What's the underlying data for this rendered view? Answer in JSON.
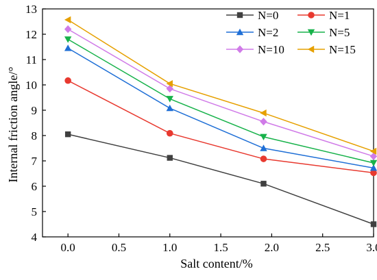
{
  "chart_data": {
    "type": "line",
    "xlabel": "Salt content/%",
    "ylabel": "Internal friction angle/°",
    "xlim": [
      -0.25,
      3.0
    ],
    "ylim": [
      4,
      13
    ],
    "xticks": [
      0.0,
      0.5,
      1.0,
      1.5,
      2.0,
      2.5,
      3.0
    ],
    "xtick_labels": [
      "0.0",
      "0.5",
      "1.0",
      "1.5",
      "2.0",
      "2.5",
      "3.0"
    ],
    "yticks": [
      4,
      5,
      6,
      7,
      8,
      9,
      10,
      11,
      12,
      13
    ],
    "ytick_labels": [
      "4",
      "5",
      "6",
      "7",
      "8",
      "9",
      "10",
      "11",
      "12",
      "13"
    ],
    "grid": false,
    "legend_position": "top-right",
    "x": [
      0.0,
      1.0,
      1.92,
      3.0
    ],
    "series": [
      {
        "name": "N=0",
        "color": "#404040",
        "marker": "square",
        "values": [
          8.05,
          7.12,
          6.1,
          4.5
        ]
      },
      {
        "name": "N=1",
        "color": "#e8392f",
        "marker": "circle",
        "values": [
          10.17,
          8.09,
          7.08,
          6.53
        ]
      },
      {
        "name": "N=2",
        "color": "#1f6fd6",
        "marker": "triangle-up",
        "values": [
          11.45,
          9.08,
          7.5,
          6.72
        ]
      },
      {
        "name": "N=5",
        "color": "#17b24a",
        "marker": "triangle-down",
        "values": [
          11.8,
          9.45,
          7.95,
          6.92
        ]
      },
      {
        "name": "N=10",
        "color": "#d07be8",
        "marker": "diamond",
        "values": [
          12.2,
          9.85,
          8.55,
          7.18
        ]
      },
      {
        "name": "N=15",
        "color": "#e6a000",
        "marker": "triangle-left",
        "values": [
          12.57,
          10.05,
          8.89,
          7.38
        ]
      }
    ]
  }
}
